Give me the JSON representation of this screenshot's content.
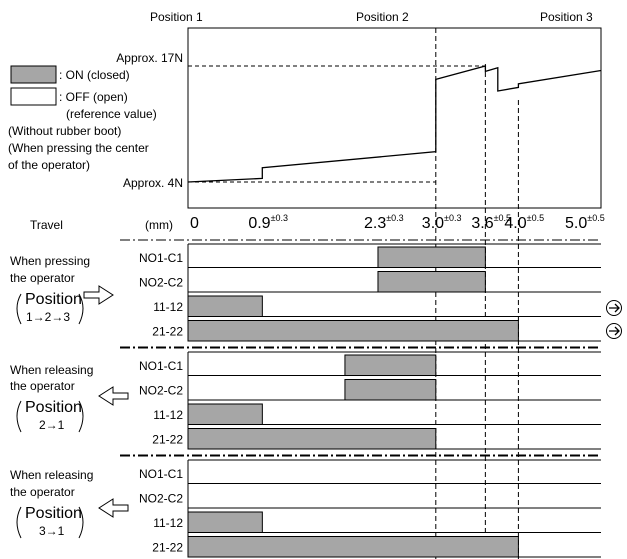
{
  "positions": [
    "Position 1",
    "Position 2",
    "Position 3"
  ],
  "force": {
    "high_label": "Approx. 17N",
    "low_label": "Approx. 4N",
    "profile": [
      {
        "travel": 0,
        "force": 4
      },
      {
        "travel": 0.9,
        "force": 4.4
      },
      {
        "travel": 0.9,
        "force": 5.6
      },
      {
        "travel": 3.0,
        "force": 7.4
      },
      {
        "travel": 3.0,
        "force": 15.5
      },
      {
        "travel": 3.6,
        "force": 17.0
      },
      {
        "travel": 3.6,
        "force": 16.4
      },
      {
        "travel": 3.75,
        "force": 16.8
      },
      {
        "travel": 3.75,
        "force": 14.2
      },
      {
        "travel": 4.0,
        "force": 14.6
      },
      {
        "travel": 4.0,
        "force": 15.0
      },
      {
        "travel": 5.0,
        "force": 16.5
      }
    ]
  },
  "legend": {
    "on_label": ": ON (closed)",
    "off_label": ": OFF (open)",
    "off_note": "(reference value)",
    "notes": [
      "(Without rubber boot)",
      "(When pressing the center",
      "of the operator)"
    ]
  },
  "travel_axis": {
    "label": "Travel",
    "unit": "(mm)",
    "ticks": [
      {
        "value": 0,
        "text": "0",
        "tol": ""
      },
      {
        "value": 0.9,
        "text": "0.9",
        "tol": "±0.3"
      },
      {
        "value": 2.3,
        "text": "2.3",
        "tol": "±0.3"
      },
      {
        "value": 3.0,
        "text": "3.0",
        "tol": "±0.3"
      },
      {
        "value": 3.6,
        "text": "3.6",
        "tol": "±0.5"
      },
      {
        "value": 4.0,
        "text": "4.0",
        "tol": "±0.5"
      },
      {
        "value": 5.0,
        "text": "5.0",
        "tol": "±0.5"
      }
    ]
  },
  "sections": [
    {
      "line1": "When pressing",
      "line2": "the operator",
      "pos_word": "Position",
      "pos_seq": "1→2→3",
      "rows": [
        {
          "label": "NO1-C1",
          "on": [
            [
              2.3,
              3.6
            ]
          ]
        },
        {
          "label": "NO2-C2",
          "on": [
            [
              2.3,
              3.6
            ]
          ]
        },
        {
          "label": "11-12",
          "on": [
            [
              0,
              0.9
            ]
          ]
        },
        {
          "label": "21-22",
          "on": [
            [
              0,
              4.0
            ]
          ]
        }
      ]
    },
    {
      "line1": "When releasing",
      "line2": "the operator",
      "pos_word": "Position",
      "pos_seq": "2→1",
      "rows": [
        {
          "label": "NO1-C1",
          "on": [
            [
              1.9,
              3.0
            ]
          ]
        },
        {
          "label": "NO2-C2",
          "on": [
            [
              1.9,
              3.0
            ]
          ]
        },
        {
          "label": "11-12",
          "on": [
            [
              0,
              0.9
            ]
          ]
        },
        {
          "label": "21-22",
          "on": [
            [
              0,
              3.0
            ]
          ]
        }
      ]
    },
    {
      "line1": "When releasing",
      "line2": "the operator",
      "pos_word": "Position",
      "pos_seq": "3→1",
      "rows": [
        {
          "label": "NO1-C1",
          "on": []
        },
        {
          "label": "NO2-C2",
          "on": []
        },
        {
          "label": "11-12",
          "on": [
            [
              0,
              0.9
            ]
          ]
        },
        {
          "label": "21-22",
          "on": [
            [
              0,
              4.0
            ]
          ]
        }
      ]
    }
  ],
  "colors": {
    "on_fill": "#a6a6a6",
    "line": "#000000"
  }
}
